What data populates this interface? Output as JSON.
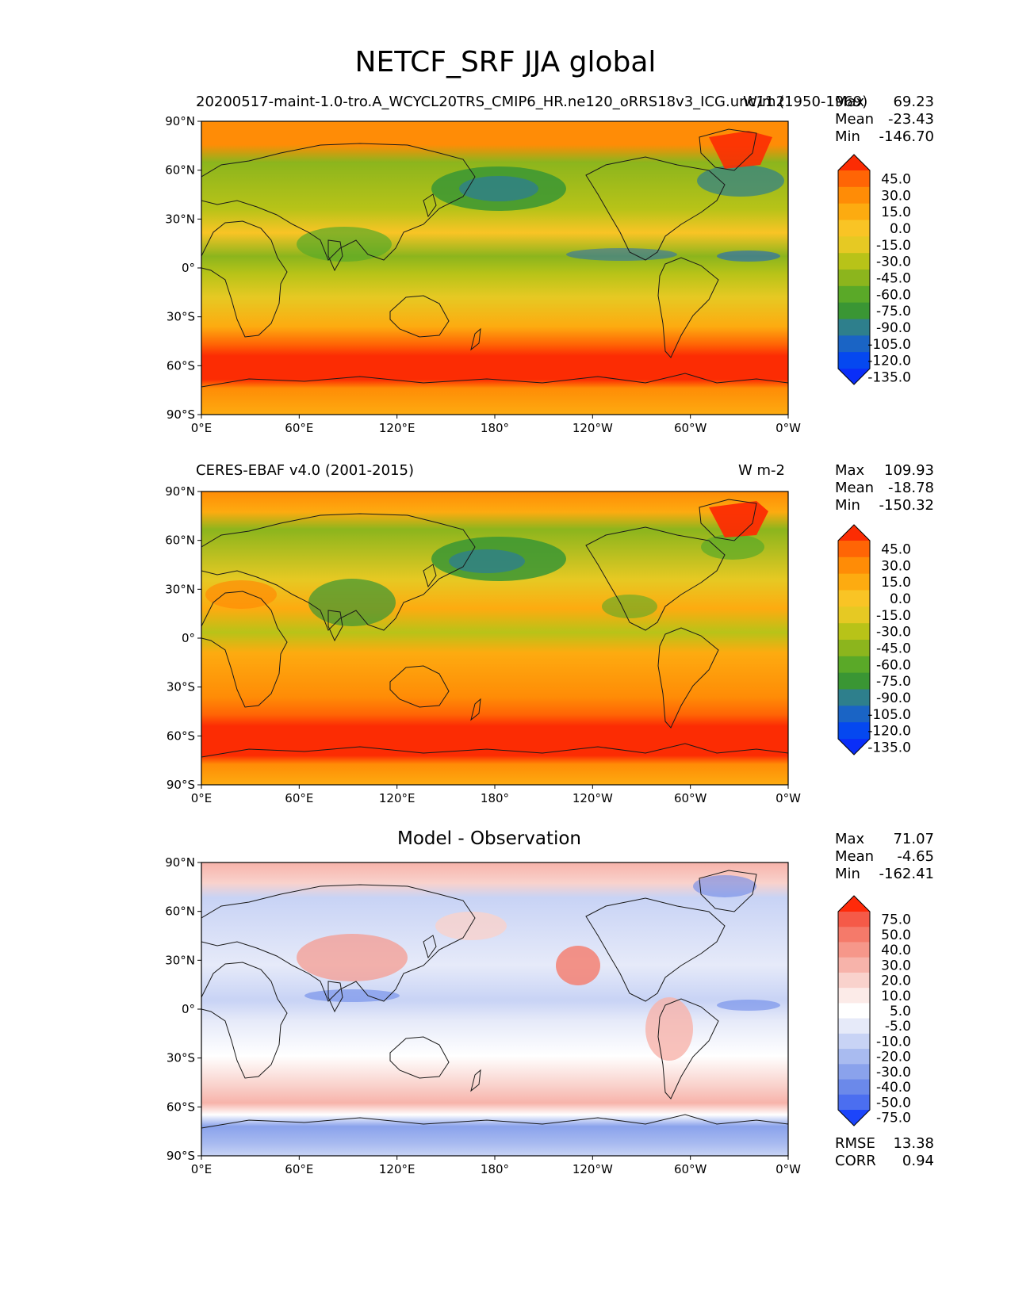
{
  "title": "NETCF_SRF JJA global",
  "panels": [
    {
      "title": "20200517-maint-1.0-tro.A_WCYCL20TRS_CMIP6_HR.ne120_oRRS18v3_ICG.unc11 (1950-1969)",
      "units": "W/m2",
      "stats": {
        "max_label": "Max",
        "max": "69.23",
        "mean_label": "Mean",
        "mean": "-23.43",
        "min_label": "Min",
        "min": "-146.70"
      },
      "colorbar": {
        "labels": [
          "45.0",
          "30.0",
          "15.0",
          "0.0",
          "-15.0",
          "-30.0",
          "-45.0",
          "-60.0",
          "-75.0",
          "-90.0",
          "-105.0",
          "-120.0",
          "-135.0"
        ],
        "colors": [
          "#fc2c03",
          "#ff6505",
          "#ff8c06",
          "#fdab10",
          "#f9c425",
          "#e6c923",
          "#b8c318",
          "#8cb51d",
          "#5aa928",
          "#3a9634",
          "#2e7f8c",
          "#1a64c5",
          "#0548f0",
          "#0a2ef8"
        ]
      }
    },
    {
      "title": "CERES-EBAF v4.0 (2001-2015)",
      "units": "W m-2",
      "stats": {
        "max_label": "Max",
        "max": "109.93",
        "mean_label": "Mean",
        "mean": "-18.78",
        "min_label": "Min",
        "min": "-150.32"
      },
      "colorbar": {
        "labels": [
          "45.0",
          "30.0",
          "15.0",
          "0.0",
          "-15.0",
          "-30.0",
          "-45.0",
          "-60.0",
          "-75.0",
          "-90.0",
          "-105.0",
          "-120.0",
          "-135.0"
        ],
        "colors": [
          "#fc2c03",
          "#ff6505",
          "#ff8c06",
          "#fdab10",
          "#f9c425",
          "#e6c923",
          "#b8c318",
          "#8cb51d",
          "#5aa928",
          "#3a9634",
          "#2e7f8c",
          "#1a64c5",
          "#0548f0",
          "#0a2ef8"
        ]
      }
    },
    {
      "title": "Model - Observation",
      "units": "",
      "stats": {
        "max_label": "Max",
        "max": "71.07",
        "mean_label": "Mean",
        "mean": "-4.65",
        "min_label": "Min",
        "min": "-162.41"
      },
      "colorbar": {
        "labels": [
          "75.0",
          "50.0",
          "40.0",
          "30.0",
          "20.0",
          "10.0",
          "5.0",
          "-5.0",
          "-10.0",
          "-20.0",
          "-30.0",
          "-40.0",
          "-50.0",
          "-75.0"
        ],
        "colors": [
          "#ff2a0a",
          "#f55a48",
          "#f57a6a",
          "#f6978a",
          "#f7b3aa",
          "#f9d2cc",
          "#fcebe8",
          "#ffffff",
          "#e6eaf9",
          "#c8d3f5",
          "#a9bbf0",
          "#8aa2ec",
          "#6b89ea",
          "#4b6ef0",
          "#1c45fa"
        ]
      },
      "metrics": {
        "rmse_label": "RMSE",
        "rmse": "13.38",
        "corr_label": "CORR",
        "corr": "0.94"
      }
    }
  ],
  "lat_labels": [
    "90°N",
    "60°N",
    "30°N",
    "0°",
    "30°S",
    "60°S",
    "90°S"
  ],
  "lon_labels": [
    "0°E",
    "60°E",
    "120°E",
    "180°",
    "120°W",
    "60°W",
    "0°W"
  ]
}
